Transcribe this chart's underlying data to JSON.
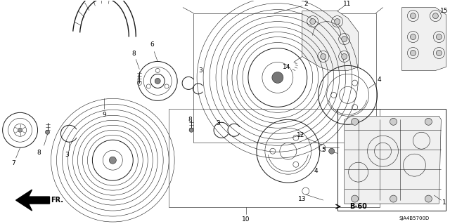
{
  "bg": "#ffffff",
  "lc": "#1a1a1a",
  "diagram_code": "SJA4B5700D",
  "page_ref": "B-60",
  "figsize": [
    6.4,
    3.19
  ],
  "dpi": 100
}
